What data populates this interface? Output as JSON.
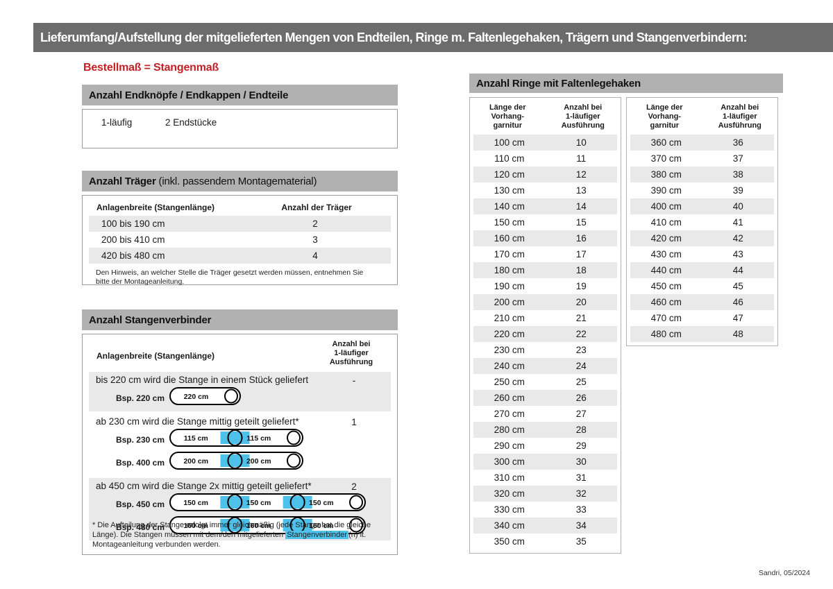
{
  "header": {
    "title": "Lieferumfang/Aufstellung der mitgelieferten Mengen von Endteilen, Ringe m. Faltenlegehaken, Trägern und Stangenverbindern:"
  },
  "subtitle": "Bestellmaß = Stangenmaß",
  "footer": "Sandri, 05/2024",
  "colors": {
    "title_bar_gray": "#6c6c6c",
    "section_bar_gray": "#b2b1b1",
    "row_stripe_gray": "#e9e9e9",
    "accent_red": "#c32026",
    "accent_blue": "#4ec1ea"
  },
  "endteile": {
    "heading": "Anzahl Endknöpfe / Endkappen / Endteile",
    "row": {
      "type": "1-läufig",
      "value": "2 Endstücke"
    }
  },
  "traeger": {
    "heading_bold": "Anzahl Träger",
    "heading_rest": " (inkl. passendem Montagematerial)",
    "col1": "Anlagenbreite (Stangenlänge)",
    "col2": "Anzahl der Träger",
    "rows": [
      [
        "100 bis 190 cm",
        "2"
      ],
      [
        "200 bis 410 cm",
        "3"
      ],
      [
        "420 bis 480 cm",
        "4"
      ]
    ],
    "note": "Den Hinweis, an welcher Stelle die Träger gesetzt werden müssen, entnehmen Sie bitte der Montageanleitung."
  },
  "verbinder": {
    "heading": "Anzahl Stangenverbinder",
    "col1": "Anlagenbreite (Stangenlänge)",
    "col2": "Anzahl bei\n1-läufiger\nAusführung",
    "groups": [
      {
        "text": "bis 220 cm wird die Stange in einem Stück geliefert",
        "count": "-",
        "rods": [
          {
            "label": "Bsp. 220 cm",
            "segments": [
              "220 cm"
            ]
          }
        ]
      },
      {
        "text": "ab 230 cm wird die Stange mittig geteilt geliefert*",
        "count": "1",
        "rods": [
          {
            "label": "Bsp. 230 cm",
            "segments": [
              "115 cm",
              "115 cm"
            ]
          },
          {
            "label": "Bsp. 400 cm",
            "segments": [
              "200 cm",
              "200 cm"
            ]
          }
        ]
      },
      {
        "text": "ab 450 cm wird die Stange 2x mittig geteilt geliefert*",
        "count": "2",
        "rods": [
          {
            "label": "Bsp. 450 cm",
            "segments": [
              "150 cm",
              "150 cm",
              "150 cm"
            ]
          },
          {
            "label": "Bsp. 480 cm",
            "segments": [
              "160 cm",
              "160 cm",
              "160 cm"
            ]
          }
        ]
      }
    ],
    "footnote_pre": "* Die Aufteilung der Stange erfolgt immer gleichmäßig (jede Stange hat die gleiche Länge). Die Stangen müssen mit dem/den mitgelieferten ",
    "footnote_highlight": "Stangenverbinder",
    "footnote_post": "(n) lt. Montageanleitung verbunden werden."
  },
  "ringe": {
    "heading": "Anzahl Ringe mit Faltenlegehaken",
    "col1": "Länge der\nVorhang-\ngarnitur",
    "col2": "Anzahl bei\n1-läufiger\nAusführung",
    "table1_rows": [
      [
        "100 cm",
        "10"
      ],
      [
        "110 cm",
        "11"
      ],
      [
        "120 cm",
        "12"
      ],
      [
        "130 cm",
        "13"
      ],
      [
        "140 cm",
        "14"
      ],
      [
        "150 cm",
        "15"
      ],
      [
        "160 cm",
        "16"
      ],
      [
        "170 cm",
        "17"
      ],
      [
        "180 cm",
        "18"
      ],
      [
        "190 cm",
        "19"
      ],
      [
        "200 cm",
        "20"
      ],
      [
        "210 cm",
        "21"
      ],
      [
        "220 cm",
        "22"
      ],
      [
        "230 cm",
        "23"
      ],
      [
        "240 cm",
        "24"
      ],
      [
        "250 cm",
        "25"
      ],
      [
        "260 cm",
        "26"
      ],
      [
        "270 cm",
        "27"
      ],
      [
        "280 cm",
        "28"
      ],
      [
        "290 cm",
        "29"
      ],
      [
        "300 cm",
        "30"
      ],
      [
        "310 cm",
        "31"
      ],
      [
        "320 cm",
        "32"
      ],
      [
        "330 cm",
        "33"
      ],
      [
        "340 cm",
        "34"
      ],
      [
        "350 cm",
        "35"
      ]
    ],
    "table2_rows": [
      [
        "360 cm",
        "36"
      ],
      [
        "370 cm",
        "37"
      ],
      [
        "380 cm",
        "38"
      ],
      [
        "390 cm",
        "39"
      ],
      [
        "400 cm",
        "40"
      ],
      [
        "410 cm",
        "41"
      ],
      [
        "420 cm",
        "42"
      ],
      [
        "430 cm",
        "43"
      ],
      [
        "440 cm",
        "44"
      ],
      [
        "450 cm",
        "45"
      ],
      [
        "460 cm",
        "46"
      ],
      [
        "470 cm",
        "47"
      ],
      [
        "480 cm",
        "48"
      ]
    ]
  }
}
